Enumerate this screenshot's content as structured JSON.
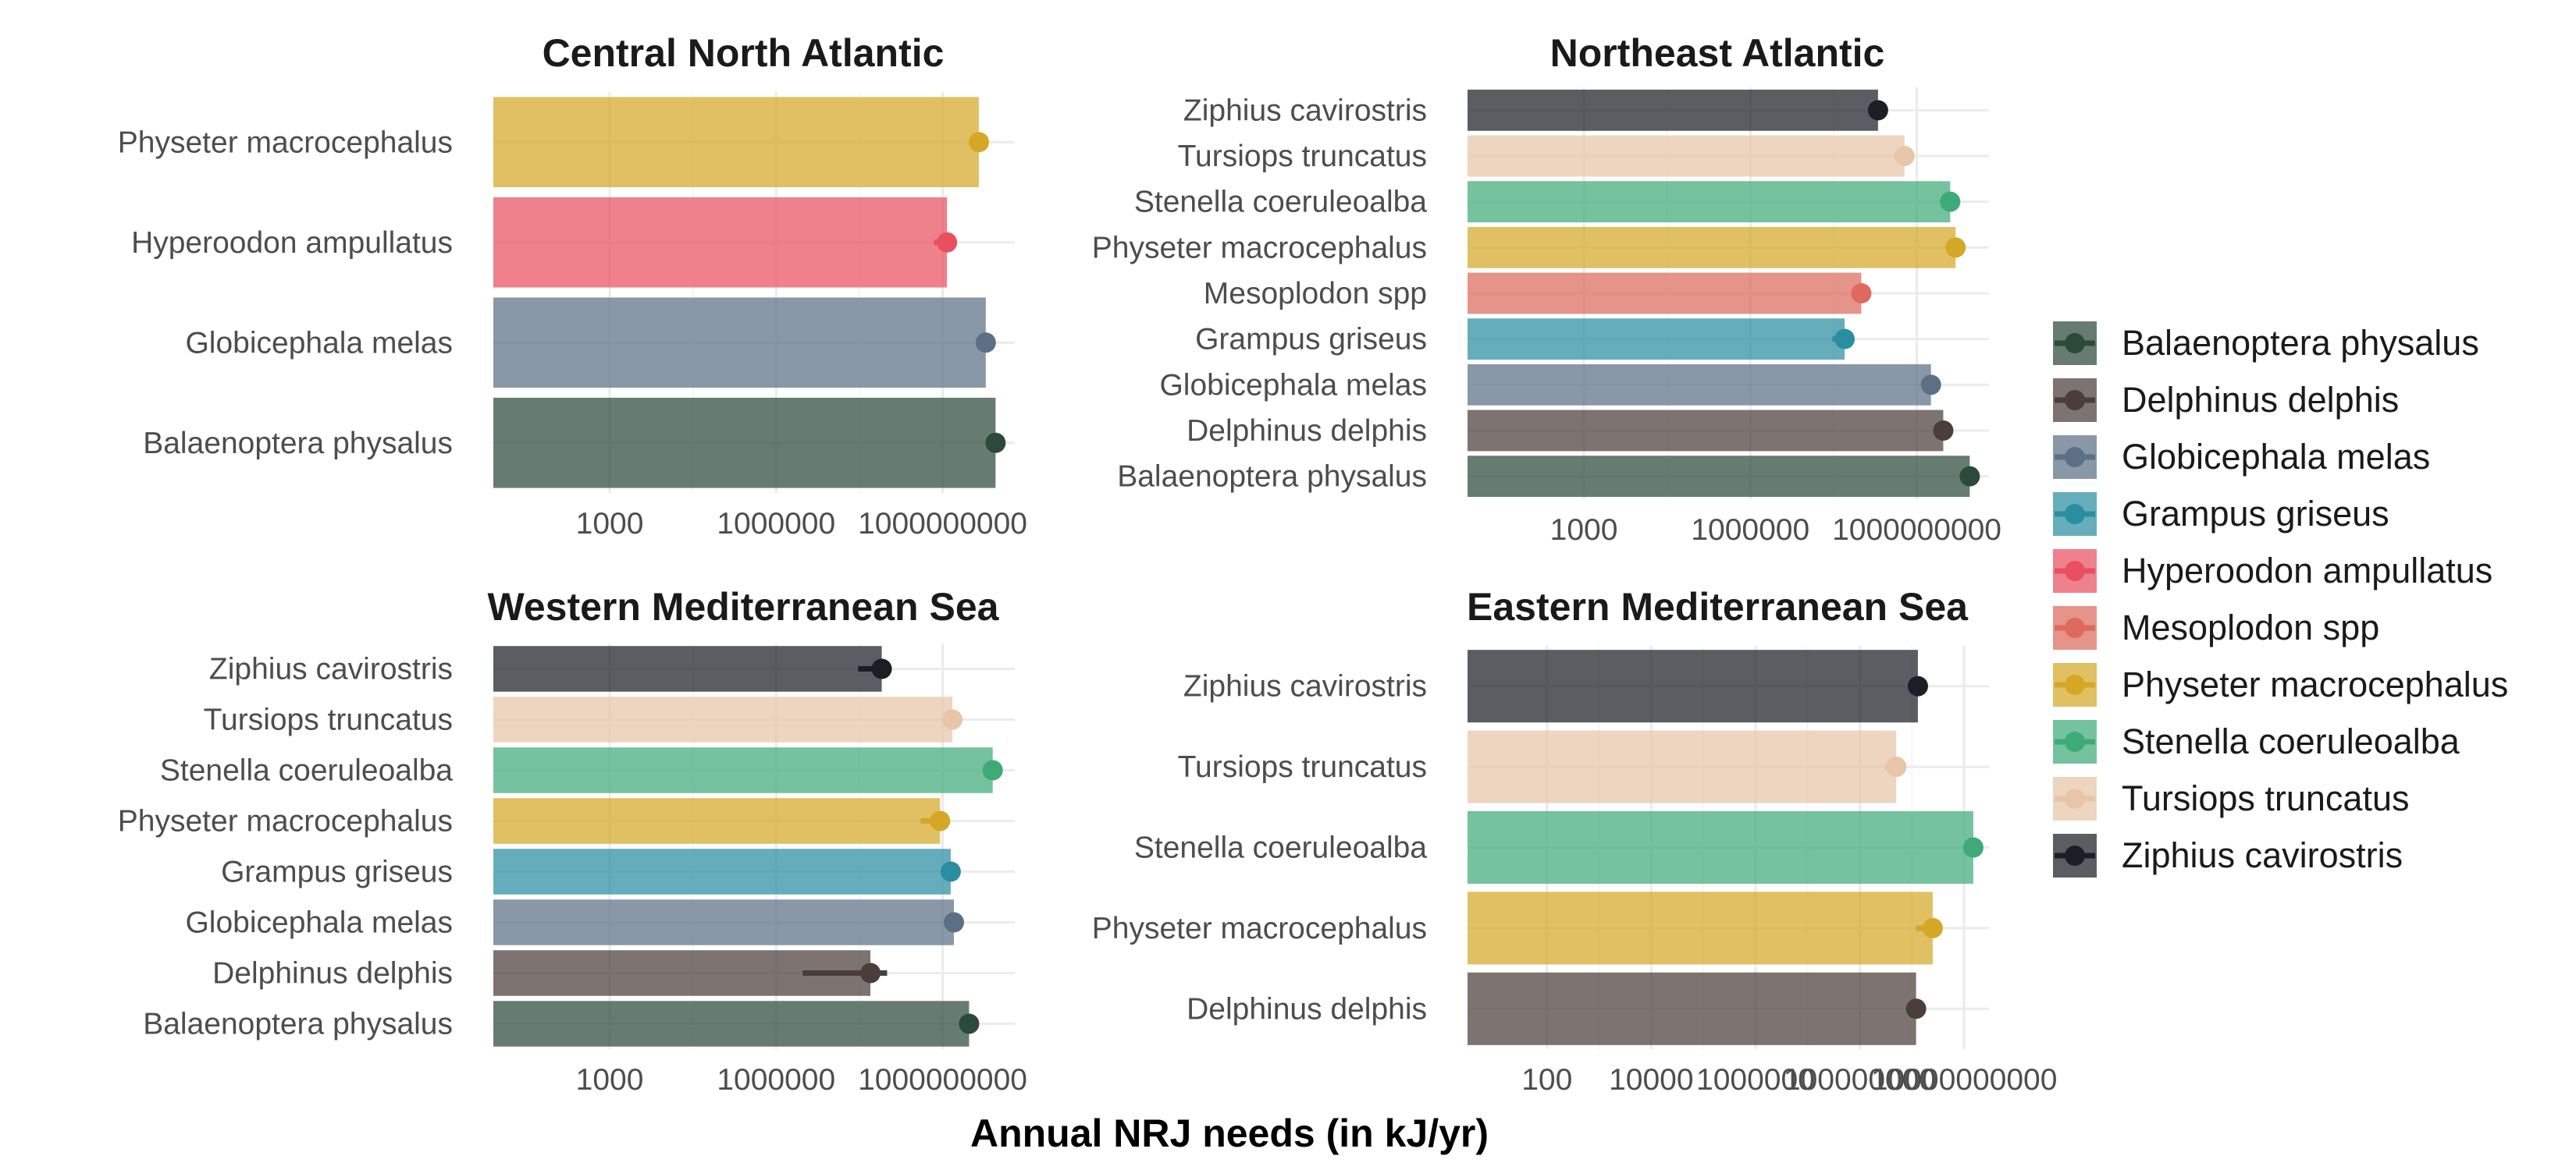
{
  "colors": {
    "Balaenoptera physalus": "#2c4a3a",
    "Delphinus delphis": "#4b3d3a",
    "Globicephala melas": "#5b7085",
    "Grampus griseus": "#2a8ea0",
    "Hyperoodon ampullatus": "#e8505f",
    "Mesoplodon spp": "#dd6a5c",
    "Physeter macrocephalus": "#d4a825",
    "Stenella coeruleoalba": "#3eaa78",
    "Tursiops truncatus": "#e8c5a8",
    "Ziphius cavirostris": "#1b1f25"
  },
  "x_axis_title": "Annual NRJ needs (in kJ/yr)",
  "legend": {
    "position": "right",
    "items": [
      "Balaenoptera physalus",
      "Delphinus delphis",
      "Globicephala melas",
      "Grampus griseus",
      "Hyperoodon ampullatus",
      "Mesoplodon spp",
      "Physeter macrocephalus",
      "Stenella coeruleoalba",
      "Tursiops truncatus",
      "Ziphius cavirostris"
    ]
  },
  "chart_data": [
    {
      "type": "bar",
      "orientation": "horizontal",
      "title": "Central North Atlantic",
      "xscale": "log10",
      "xlim": [
        8,
        20000000000.0
      ],
      "xticks": [
        1000,
        1000000,
        1000000000
      ],
      "xtick_labels": [
        "1000",
        "1000000",
        "1000000000"
      ],
      "grid": true,
      "categories": [
        "Balaenoptera physalus",
        "Globicephala melas",
        "Hyperoodon ampullatus",
        "Physeter macrocephalus"
      ],
      "values": [
        9000000000.0,
        6000000000.0,
        1200000000.0,
        4500000000.0
      ],
      "error_low": [
        8000000000.0,
        5000000000.0,
        700000000.0,
        3000000000.0
      ],
      "error_high": [
        10000000000.0,
        7000000000.0,
        1500000000.0,
        5500000000.0
      ]
    },
    {
      "type": "bar",
      "orientation": "horizontal",
      "title": "Northeast Atlantic",
      "xscale": "log10",
      "xlim": [
        8,
        20000000000.0
      ],
      "xticks": [
        1000,
        1000000,
        1000000000
      ],
      "xtick_labels": [
        "1000",
        "1000000",
        "1000000000"
      ],
      "grid": true,
      "categories": [
        "Balaenoptera physalus",
        "Delphinus delphis",
        "Globicephala melas",
        "Grampus griseus",
        "Mesoplodon spp",
        "Physeter macrocephalus",
        "Stenella coeruleoalba",
        "Tursiops truncatus",
        "Ziphius cavirostris"
      ],
      "values": [
        9000000000.0,
        3000000000.0,
        1800000000.0,
        50000000.0,
        100000000.0,
        5000000000.0,
        4000000000.0,
        600000000.0,
        200000000.0
      ],
      "error_low": [
        8000000000.0,
        2500000000.0,
        1500000000.0,
        30000000.0,
        80000000.0,
        4000000000.0,
        3500000000.0,
        500000000.0,
        180000000.0
      ],
      "error_high": [
        10000000000.0,
        3500000000.0,
        2000000000.0,
        70000000.0,
        130000000.0,
        6000000000.0,
        4500000000.0,
        700000000.0,
        220000000.0
      ]
    },
    {
      "type": "bar",
      "orientation": "horizontal",
      "title": "Western Mediterranean Sea",
      "xscale": "log10",
      "xlim": [
        8,
        20000000000.0
      ],
      "xticks": [
        1000,
        1000000,
        1000000000
      ],
      "xtick_labels": [
        "1000",
        "1000000",
        "1000000000"
      ],
      "grid": true,
      "categories": [
        "Balaenoptera physalus",
        "Delphinus delphis",
        "Globicephala melas",
        "Grampus griseus",
        "Physeter macrocephalus",
        "Stenella coeruleoalba",
        "Tursiops truncatus",
        "Ziphius cavirostris"
      ],
      "values": [
        3000000000.0,
        50000000.0,
        1600000000.0,
        1400000000.0,
        900000000.0,
        8000000000.0,
        1500000000.0,
        80000000.0
      ],
      "error_low": [
        2500000000.0,
        3000000.0,
        1300000000.0,
        1200000000.0,
        400000000.0,
        7000000000.0,
        1300000000.0,
        30000000.0
      ],
      "error_high": [
        3500000000.0,
        100000000.0,
        1900000000.0,
        1700000000.0,
        1300000000.0,
        9000000000.0,
        1800000000.0,
        120000000.0
      ]
    },
    {
      "type": "bar",
      "orientation": "horizontal",
      "title": "Eastern Mediterranean Sea",
      "xscale": "log10",
      "xlim": [
        3,
        30000000000.0
      ],
      "xticks": [
        100,
        10000,
        1000000,
        100000000,
        10000000000
      ],
      "xtick_labels": [
        "100",
        "10000",
        "1000000",
        "100000000",
        "10000000000"
      ],
      "grid": true,
      "categories": [
        "Delphinus delphis",
        "Physeter macrocephalus",
        "Stenella coeruleoalba",
        "Tursiops truncatus",
        "Ziphius cavirostris"
      ],
      "values": [
        1200000000.0,
        2500000000.0,
        15000000000.0,
        500000000.0,
        1300000000.0
      ],
      "error_low": [
        800000000.0,
        1200000000.0,
        13000000000.0,
        300000000.0,
        1000000000.0
      ],
      "error_high": [
        1500000000.0,
        3000000000.0,
        17000000000.0,
        600000000.0,
        1600000000.0
      ]
    }
  ]
}
